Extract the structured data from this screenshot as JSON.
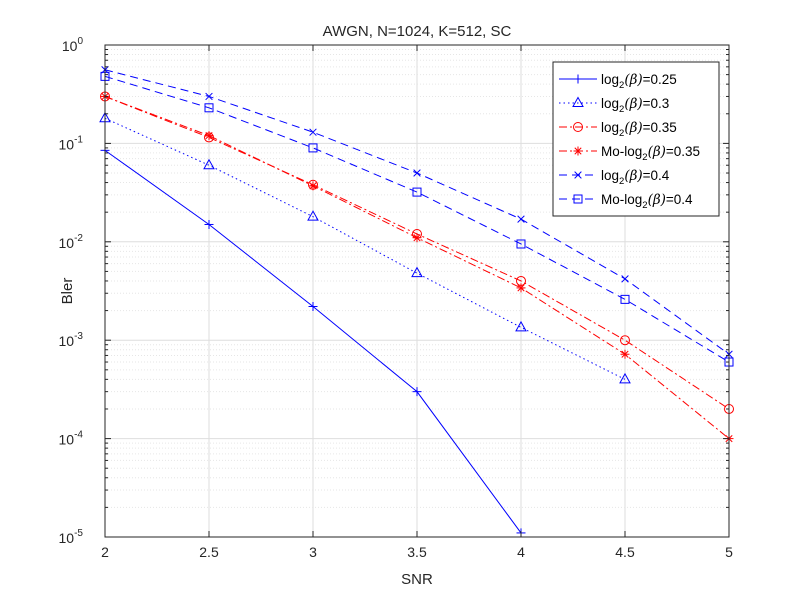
{
  "chart_data": {
    "type": "line",
    "title": "AWGN, N=1024, K=512, SC",
    "xlabel": "SNR",
    "ylabel": "Bler",
    "xlim": [
      2,
      5
    ],
    "ylim": [
      1e-05,
      1
    ],
    "yscale": "log",
    "grid": "major and minor",
    "legend_position": "top-right",
    "x_ticks": [
      "2",
      "2.5",
      "3",
      "3.5",
      "4",
      "4.5",
      "5"
    ],
    "y_ticks": [
      {
        "base": "10",
        "exp": "-5"
      },
      {
        "base": "10",
        "exp": "-4"
      },
      {
        "base": "10",
        "exp": "-3"
      },
      {
        "base": "10",
        "exp": "-2"
      },
      {
        "base": "10",
        "exp": "-1"
      },
      {
        "base": "10",
        "exp": "0"
      }
    ],
    "series": [
      {
        "label_pre": "log",
        "label_sub": "2",
        "label_beta": "(β)",
        "label_post": "=0.25",
        "color": "#0000ff",
        "dash": "",
        "marker": "plus",
        "x": [
          2,
          2.5,
          3,
          3.5,
          4
        ],
        "y": [
          0.085,
          0.015,
          0.0022,
          0.0003,
          1.1e-05
        ]
      },
      {
        "label_pre": "log",
        "label_sub": "2",
        "label_beta": "(β)",
        "label_post": "=0.3",
        "color": "#0000ff",
        "dash": "1.5,3",
        "marker": "triangle",
        "x": [
          2,
          2.5,
          3,
          3.5,
          4,
          4.5
        ],
        "y": [
          0.18,
          0.06,
          0.018,
          0.0048,
          0.00135,
          0.0004
        ]
      },
      {
        "label_pre": "log",
        "label_sub": "2",
        "label_beta": "(β)",
        "label_post": "=0.35",
        "color": "#ff0000",
        "dash": "8,3,2,3",
        "marker": "circle",
        "x": [
          2,
          2.5,
          3,
          3.5,
          4,
          4.5,
          5
        ],
        "y": [
          0.3,
          0.115,
          0.038,
          0.012,
          0.004,
          0.001,
          0.0002
        ]
      },
      {
        "label_pre": "Mo-log",
        "label_sub": "2",
        "label_beta": "(β)",
        "label_post": "=0.35",
        "color": "#ff0000",
        "dash": "8,3,2,3",
        "marker": "asterisk",
        "x": [
          2,
          2.5,
          3,
          3.5,
          4,
          4.5,
          5
        ],
        "y": [
          0.3,
          0.12,
          0.037,
          0.011,
          0.0034,
          0.00072,
          0.0001
        ]
      },
      {
        "label_pre": "log",
        "label_sub": "2",
        "label_beta": "(β)",
        "label_post": "=0.4",
        "color": "#0000ff",
        "dash": "8,5",
        "marker": "cross",
        "x": [
          2,
          2.5,
          3,
          3.5,
          4,
          4.5,
          5
        ],
        "y": [
          0.56,
          0.3,
          0.13,
          0.05,
          0.017,
          0.0042,
          0.00072
        ]
      },
      {
        "label_pre": "Mo-log",
        "label_sub": "2",
        "label_beta": "(β)",
        "label_post": "=0.4",
        "color": "#0000ff",
        "dash": "8,5",
        "marker": "square",
        "x": [
          2,
          2.5,
          3,
          3.5,
          4,
          4.5,
          5
        ],
        "y": [
          0.48,
          0.23,
          0.09,
          0.032,
          0.0095,
          0.0026,
          0.0006
        ]
      }
    ]
  }
}
